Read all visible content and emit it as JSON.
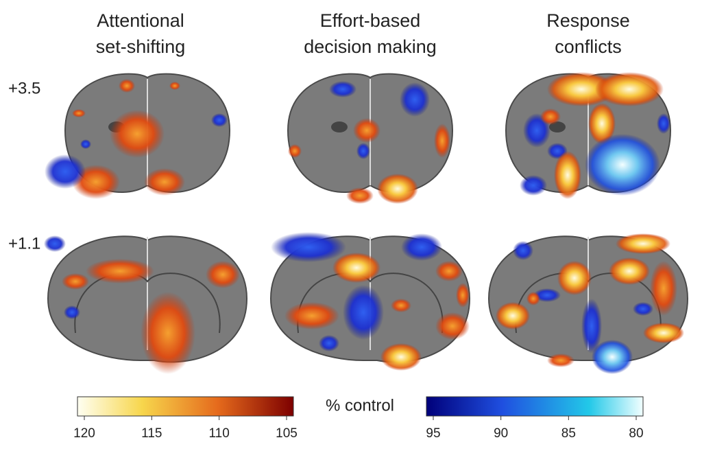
{
  "columns": [
    {
      "title_lines": [
        "Attentional",
        "set-shifting"
      ]
    },
    {
      "title_lines": [
        "Effort-based",
        "decision making"
      ]
    },
    {
      "title_lines": [
        "Response",
        "conflicts"
      ]
    }
  ],
  "rows": [
    "+3.5",
    "+1.1"
  ],
  "colorbar_label": "% control",
  "colorbars": [
    {
      "ticks": [
        120,
        115,
        110,
        105
      ]
    },
    {
      "ticks": [
        95,
        90,
        85,
        80
      ]
    }
  ]
}
